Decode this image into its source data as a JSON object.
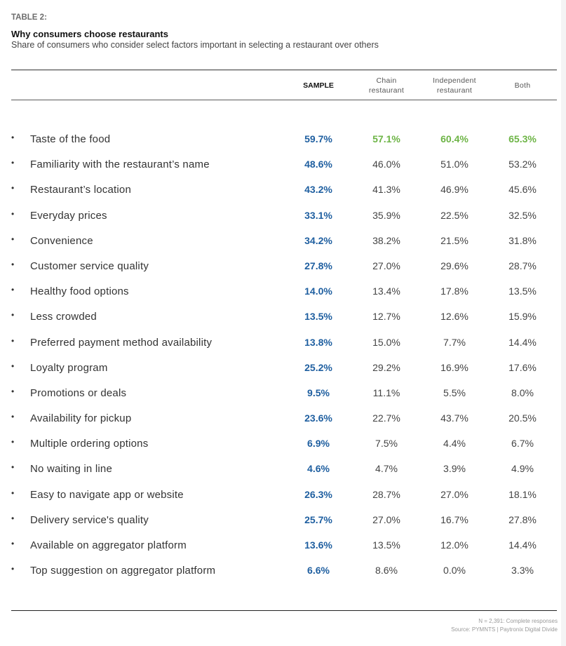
{
  "header": {
    "kicker": "TABLE 2:",
    "title": "Why consumers choose restaurants",
    "subtitle": "Share of consumers who consider select factors important in selecting a restaurant over others"
  },
  "columns": [
    {
      "label": "SAMPLE"
    },
    {
      "label": "Chain\nrestaurant"
    },
    {
      "label": "Independent\nrestaurant"
    },
    {
      "label": "Both"
    }
  ],
  "colors": {
    "sample_blue": "#1f5fa0",
    "highlight_green": "#6db446",
    "text_gray": "#444444"
  },
  "bullet": "•",
  "rows": [
    {
      "factor": "Taste of the food",
      "values": [
        "59.7%",
        "57.1%",
        "60.4%",
        "65.3%"
      ],
      "highlight": true
    },
    {
      "factor": "Familiarity with the restaurant’s name",
      "values": [
        "48.6%",
        "46.0%",
        "51.0%",
        "53.2%"
      ]
    },
    {
      "factor": "Restaurant’s location",
      "values": [
        "43.2%",
        "41.3%",
        "46.9%",
        "45.6%"
      ]
    },
    {
      "factor": "Everyday prices",
      "values": [
        "33.1%",
        "35.9%",
        "22.5%",
        "32.5%"
      ]
    },
    {
      "factor": "Convenience",
      "values": [
        "34.2%",
        "38.2%",
        "21.5%",
        "31.8%"
      ]
    },
    {
      "factor": "Customer service quality",
      "values": [
        "27.8%",
        "27.0%",
        "29.6%",
        "28.7%"
      ]
    },
    {
      "factor": "Healthy food options",
      "values": [
        "14.0%",
        "13.4%",
        "17.8%",
        "13.5%"
      ]
    },
    {
      "factor": "Less crowded",
      "values": [
        "13.5%",
        "12.7%",
        "12.6%",
        "15.9%"
      ]
    },
    {
      "factor": "Preferred payment method availability",
      "values": [
        "13.8%",
        "15.0%",
        "7.7%",
        "14.4%"
      ]
    },
    {
      "factor": "Loyalty program",
      "values": [
        "25.2%",
        "29.2%",
        "16.9%",
        "17.6%"
      ]
    },
    {
      "factor": "Promotions or deals",
      "values": [
        "9.5%",
        "11.1%",
        "5.5%",
        "8.0%"
      ]
    },
    {
      "factor": "Availability for pickup",
      "values": [
        "23.6%",
        "22.7%",
        "43.7%",
        "20.5%"
      ]
    },
    {
      "factor": "Multiple ordering options",
      "values": [
        "6.9%",
        "7.5%",
        "4.4%",
        "6.7%"
      ]
    },
    {
      "factor": "No waiting in line",
      "values": [
        "4.6%",
        "4.7%",
        "3.9%",
        "4.9%"
      ]
    },
    {
      "factor": "Easy to navigate app or website",
      "values": [
        "26.3%",
        "28.7%",
        "27.0%",
        "18.1%"
      ]
    },
    {
      "factor": "Delivery service's quality",
      "values": [
        "25.7%",
        "27.0%",
        "16.7%",
        "27.8%"
      ]
    },
    {
      "factor": "Available on aggregator platform",
      "values": [
        "13.6%",
        "13.5%",
        "12.0%",
        "14.4%"
      ]
    },
    {
      "factor": "Top suggestion on aggregator platform",
      "values": [
        "6.6%",
        "8.6%",
        "0.0%",
        "3.3%"
      ]
    }
  ],
  "footer": {
    "note": "N = 2,391: Complete responses",
    "source": "Source: PYMNTS | Paytronix   Digital Divide"
  }
}
